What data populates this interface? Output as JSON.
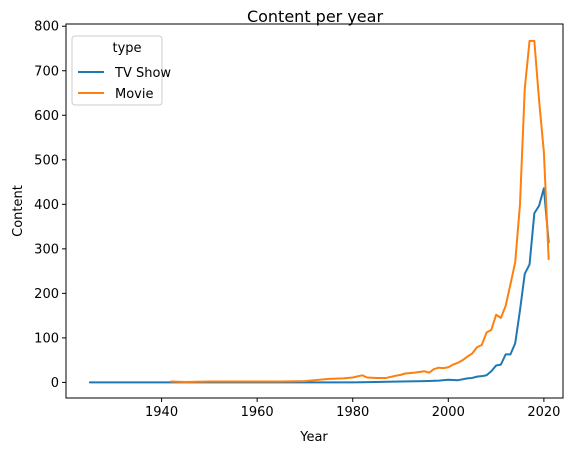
{
  "chart_data": {
    "type": "line",
    "title": "Content per year",
    "xlabel": "Year",
    "ylabel": "Content",
    "xlim": [
      1920,
      2024
    ],
    "ylim": [
      -35,
      805
    ],
    "xticks": [
      1940,
      1960,
      1980,
      2000,
      2020
    ],
    "yticks": [
      0,
      100,
      200,
      300,
      400,
      500,
      600,
      700,
      800
    ],
    "grid": false,
    "legend": {
      "title": "type",
      "placement": "top-left"
    },
    "series": [
      {
        "name": "TV Show",
        "color": "#1f77b4",
        "x": [
          1925,
          1930,
          1940,
          1960,
          1980,
          1985,
          1990,
          1995,
          1998,
          2000,
          2002,
          2004,
          2005,
          2006,
          2007,
          2008,
          2009,
          2010,
          2011,
          2012,
          2013,
          2014,
          2015,
          2016,
          2017,
          2018,
          2019,
          2020,
          2021
        ],
        "y": [
          0,
          0,
          0,
          0,
          0,
          1,
          2,
          3,
          4,
          6,
          5,
          9,
          10,
          13,
          14,
          16,
          25,
          38,
          40,
          63,
          63,
          88,
          162,
          244,
          265,
          380,
          397,
          436,
          315
        ]
      },
      {
        "name": "Movie",
        "color": "#ff7f0e",
        "x": [
          1942,
          1945,
          1950,
          1955,
          1960,
          1965,
          1970,
          1972,
          1975,
          1978,
          1980,
          1982,
          1983,
          1985,
          1987,
          1989,
          1990,
          1991,
          1993,
          1995,
          1996,
          1997,
          1998,
          1999,
          2000,
          2001,
          2002,
          2003,
          2004,
          2005,
          2006,
          2007,
          2008,
          2009,
          2010,
          2011,
          2012,
          2013,
          2014,
          2015,
          2016,
          2017,
          2018,
          2019,
          2020,
          2021
        ],
        "y": [
          2,
          1,
          2,
          2,
          2,
          2,
          3,
          5,
          8,
          9,
          11,
          16,
          11,
          10,
          10,
          15,
          17,
          20,
          22,
          25,
          22,
          30,
          33,
          32,
          34,
          40,
          44,
          50,
          58,
          65,
          79,
          84,
          112,
          118,
          152,
          145,
          172,
          220,
          270,
          400,
          660,
          767,
          767,
          633,
          517,
          277
        ]
      }
    ]
  }
}
